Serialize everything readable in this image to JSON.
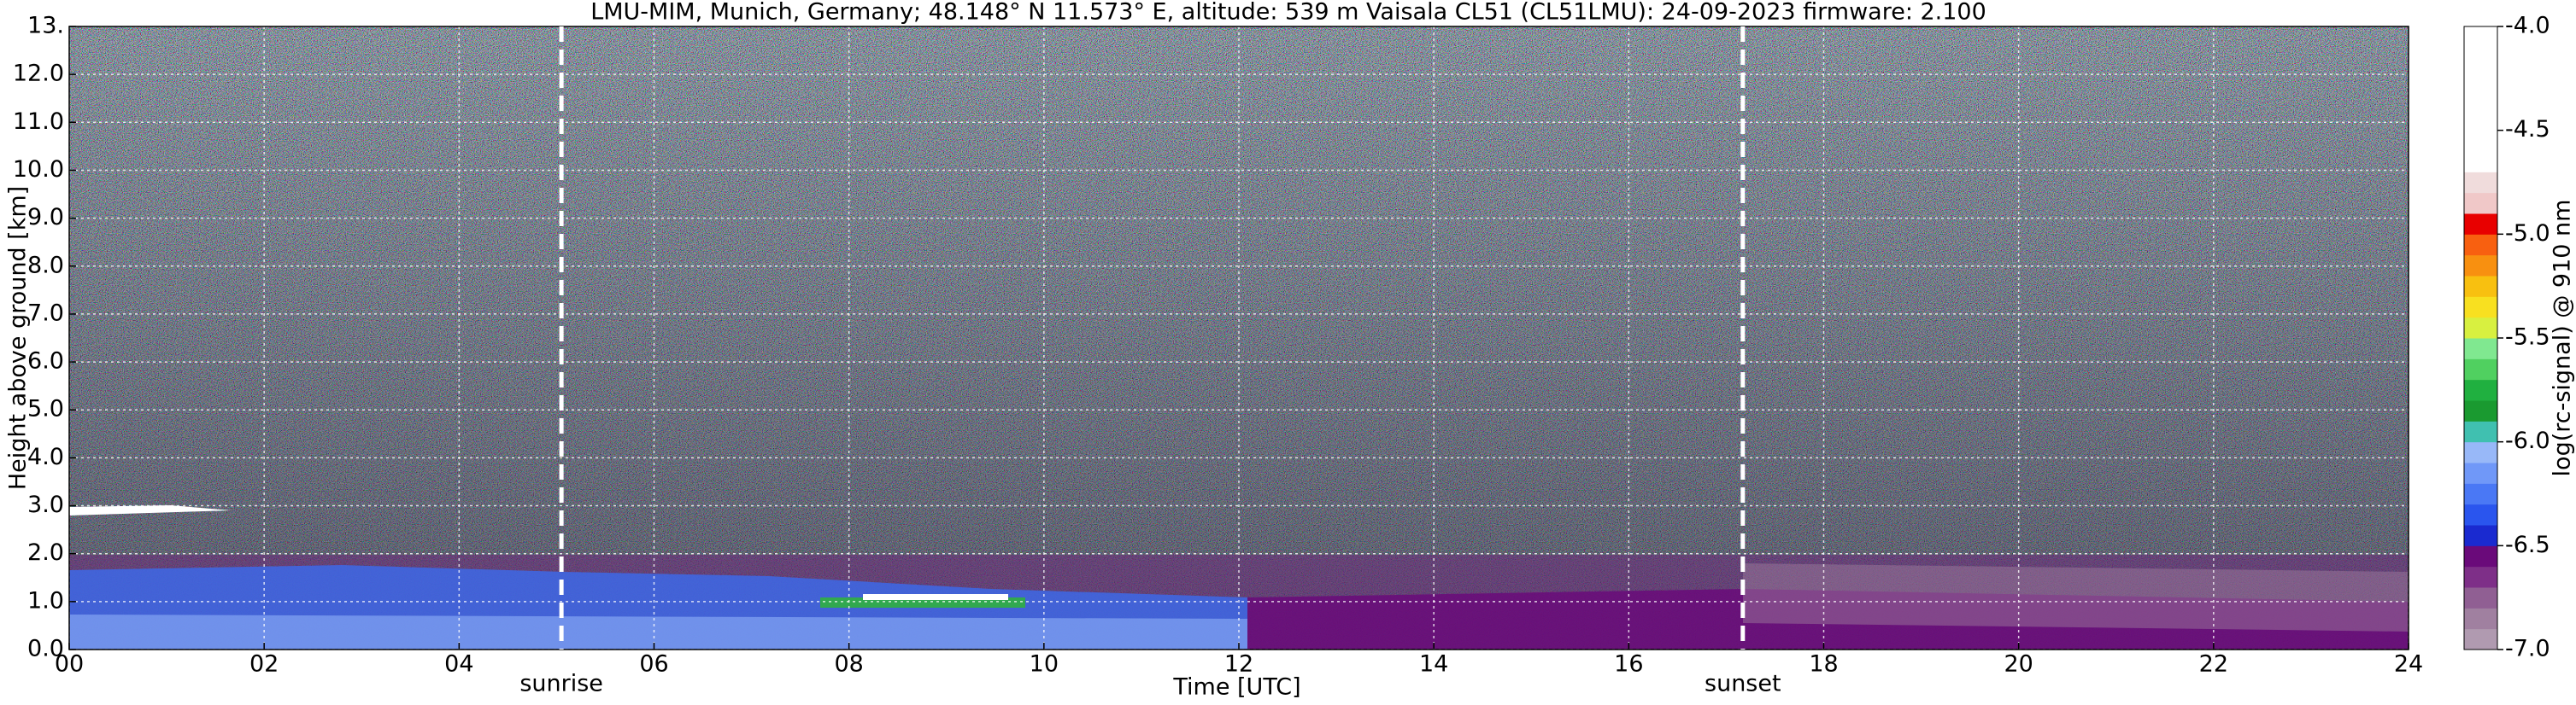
{
  "chart_data": {
    "type": "heatmap",
    "title": "LMU-MIM, Munich, Germany; 48.148° N 11.573° E, altitude: 539 m    Vaisala CL51 (CL51LMU): 24-09-2023    firmware: 2.100",
    "x_label": "Time [UTC]",
    "y_label": "Height above ground [km]",
    "xlim": [
      0,
      24
    ],
    "xticks": [
      {
        "value": 0,
        "label": "00"
      },
      {
        "value": 2,
        "label": "02"
      },
      {
        "value": 4,
        "label": "04"
      },
      {
        "value": 6,
        "label": "06"
      },
      {
        "value": 8,
        "label": "08"
      },
      {
        "value": 10,
        "label": "10"
      },
      {
        "value": 12,
        "label": "12"
      },
      {
        "value": 14,
        "label": "14"
      },
      {
        "value": 16,
        "label": "16"
      },
      {
        "value": 18,
        "label": "18"
      },
      {
        "value": 20,
        "label": "20"
      },
      {
        "value": 22,
        "label": "22"
      },
      {
        "value": 24,
        "label": "24"
      }
    ],
    "ylim": [
      0,
      13
    ],
    "yticks": [
      {
        "value": 0,
        "label": "0.0"
      },
      {
        "value": 1,
        "label": "1.0"
      },
      {
        "value": 2,
        "label": "2.0"
      },
      {
        "value": 3,
        "label": "3.0"
      },
      {
        "value": 4,
        "label": "4.0"
      },
      {
        "value": 5,
        "label": "5.0"
      },
      {
        "value": 6,
        "label": "6.0"
      },
      {
        "value": 7,
        "label": "7.0"
      },
      {
        "value": 8,
        "label": "8.0"
      },
      {
        "value": 9,
        "label": "9.0"
      },
      {
        "value": 10,
        "label": "10.0"
      },
      {
        "value": 11,
        "label": "11.0"
      },
      {
        "value": 12,
        "label": "12.0"
      },
      {
        "value": 13,
        "label": "13."
      }
    ],
    "grid": true,
    "annotations": [
      {
        "text": "sunrise",
        "x": 5.05
      },
      {
        "text": "sunset",
        "x": 17.17
      }
    ],
    "colorbar": {
      "label": "log(rc-signal) @ 910 nm",
      "clim": [
        -7.0,
        -4.0
      ],
      "ticks": [
        {
          "value": -4.0,
          "label": "-4.0"
        },
        {
          "value": -4.5,
          "label": "-4.5"
        },
        {
          "value": -5.0,
          "label": "-5.0"
        },
        {
          "value": -5.5,
          "label": "-5.5"
        },
        {
          "value": -6.0,
          "label": "-6.0"
        },
        {
          "value": -6.5,
          "label": "-6.5"
        },
        {
          "value": -7.0,
          "label": "-7.0"
        }
      ],
      "colors": [
        "#b09ab0",
        "#a080a0",
        "#905f93",
        "#7e2f88",
        "#6a0a7a",
        "#1a2ad0",
        "#2a55ee",
        "#4a78f5",
        "#7098f8",
        "#98b8f8",
        "#40c0b0",
        "#1a9a30",
        "#20b040",
        "#50d060",
        "#80e890",
        "#d8f040",
        "#f8e020",
        "#f8c010",
        "#f89010",
        "#f86010",
        "#e80000",
        "#f0c8c8",
        "#f0dcdc",
        "#ffffff",
        "#ffffff",
        "#ffffff",
        "#ffffff",
        "#ffffff",
        "#ffffff",
        "#ffffff"
      ]
    }
  }
}
